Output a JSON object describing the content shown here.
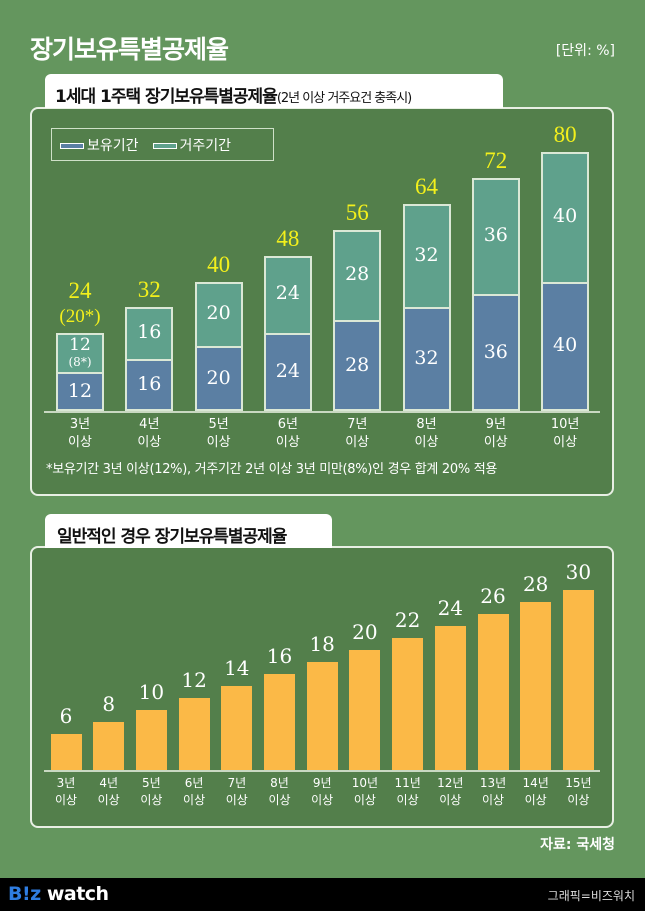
{
  "title": "장기보유특별공제율",
  "unit": "[단위: %]",
  "source": "자료: 국세청",
  "footer": {
    "logo": "B!z watch",
    "credit": "그래픽=비즈워치"
  },
  "colors": {
    "background": "#64965e",
    "panel": "#537f4b",
    "holding": "#5b7fa3",
    "residence": "#5fa18c",
    "total_label": "#f3f01c",
    "general_bar": "#fbb947"
  },
  "chart_data": [
    {
      "type": "bar",
      "stacked": true,
      "title": "1세대 1주택 장기보유특별공제율",
      "subtitle": "(2년 이상 거주요건 충족시)",
      "legend": [
        "보유기간",
        "거주기간"
      ],
      "legend_placement": "top-left",
      "categories": [
        "3년\n이상",
        "4년\n이상",
        "5년\n이상",
        "6년\n이상",
        "7년\n이상",
        "8년\n이상",
        "9년\n이상",
        "10년\n이상"
      ],
      "series": [
        {
          "name": "보유기간",
          "values": [
            12,
            16,
            20,
            24,
            28,
            32,
            36,
            40
          ]
        },
        {
          "name": "거주기간",
          "values": [
            12,
            16,
            20,
            24,
            28,
            32,
            36,
            40
          ]
        }
      ],
      "totals": [
        24,
        32,
        40,
        48,
        56,
        64,
        72,
        80
      ],
      "annotations": {
        "total_first": "(20*)",
        "residence_first": "(8*)"
      },
      "note": "*보유기간 3년 이상(12%), 거주기간 2년 이상 3년 미만(8%)인 경우 합계 20% 적용",
      "ylim": [
        0,
        80
      ],
      "grid": false
    },
    {
      "type": "bar",
      "title": "일반적인 경우 장기보유특별공제율",
      "categories": [
        "3년\n이상",
        "4년\n이상",
        "5년\n이상",
        "6년\n이상",
        "7년\n이상",
        "8년\n이상",
        "9년\n이상",
        "10년\n이상",
        "11년\n이상",
        "12년\n이상",
        "13년\n이상",
        "14년\n이상",
        "15년\n이상"
      ],
      "values": [
        6,
        8,
        10,
        12,
        14,
        16,
        18,
        20,
        22,
        24,
        26,
        28,
        30
      ],
      "ylim": [
        0,
        30
      ],
      "grid": false
    }
  ]
}
